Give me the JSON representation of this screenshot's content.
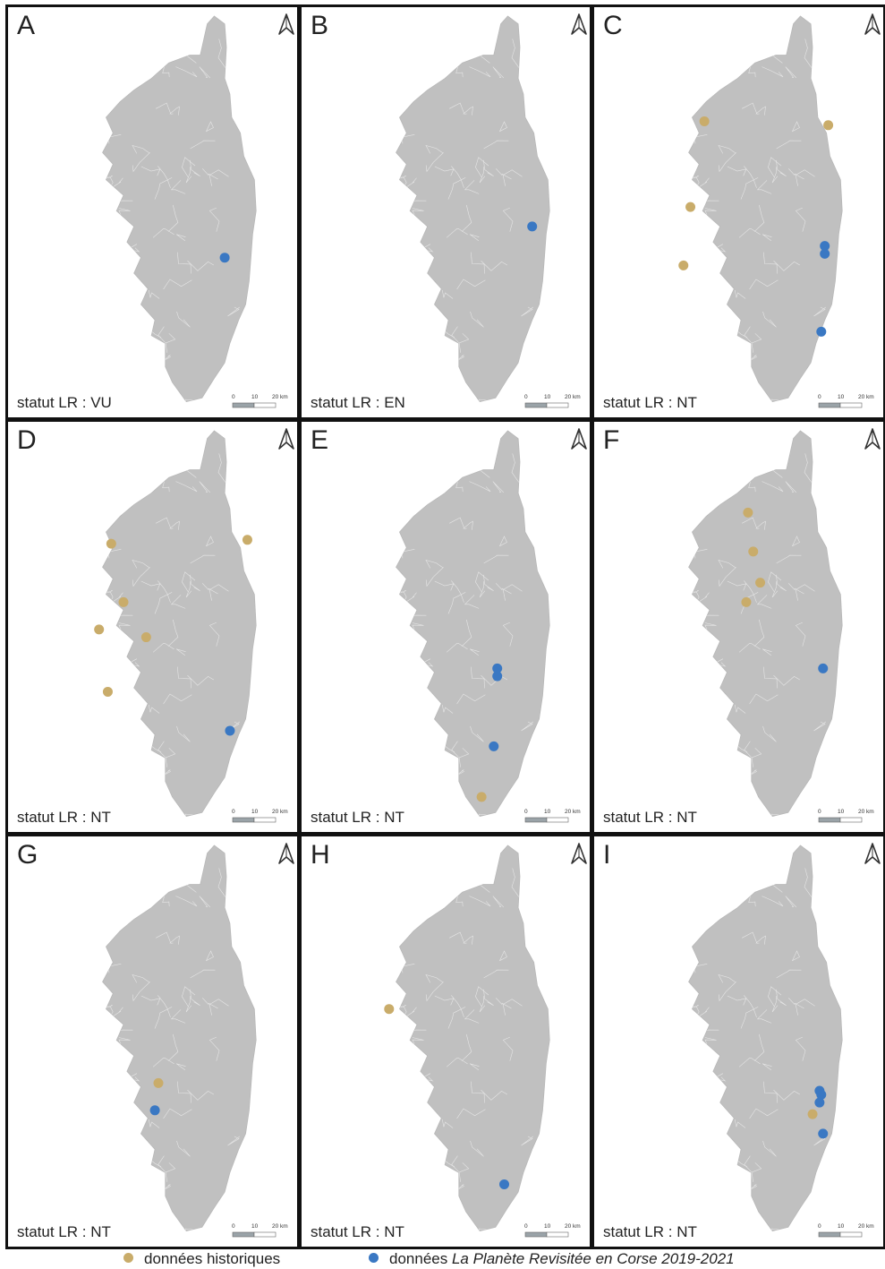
{
  "colors": {
    "historical": "#c9ac6a",
    "revisited": "#3a78c3",
    "land": "#c0c0c0",
    "commune_lines": "#e6e6e6",
    "frame": "#111111"
  },
  "map_common": {
    "north_arrow_icon": "north-arrow-icon",
    "scale_bar_labels": [
      "0",
      "10",
      "20 km"
    ]
  },
  "panels": [
    {
      "letter": "A",
      "status": "statut LR : VU"
    },
    {
      "letter": "B",
      "status": "statut LR : EN"
    },
    {
      "letter": "C",
      "status": "statut LR : NT"
    },
    {
      "letter": "D",
      "status": "statut LR : NT"
    },
    {
      "letter": "E",
      "status": "statut LR : NT"
    },
    {
      "letter": "F",
      "status": "statut LR : NT"
    },
    {
      "letter": "G",
      "status": "statut LR : NT"
    },
    {
      "letter": "H",
      "status": "statut LR : NT"
    },
    {
      "letter": "I",
      "status": "statut LR : NT"
    }
  ],
  "legend": {
    "historical_label": "données historiques",
    "revisited_label_prefix": "données ",
    "revisited_label_italic": "La Planète Revisitée en Corse 2019-2021"
  }
}
